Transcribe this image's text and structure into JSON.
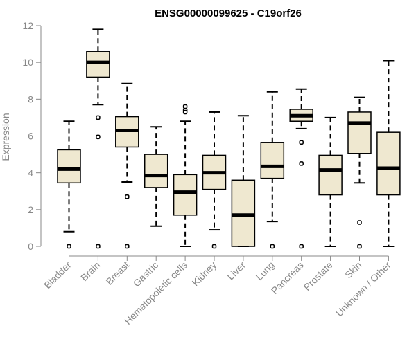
{
  "chart_data": {
    "type": "boxplot",
    "title": "ENSG00000099625 - C19orf26",
    "xlabel": "",
    "ylabel": "Expression",
    "ylim": [
      0,
      12
    ],
    "yticks": [
      0,
      2,
      4,
      6,
      8,
      10,
      12
    ],
    "colors": {
      "box_fill": "#efe8d0",
      "stroke": "#000000",
      "axis": "#888888"
    },
    "categories": [
      "Bladder",
      "Brain",
      "Breast",
      "Gastric",
      "Hematopoietic cells",
      "Kidney",
      "Liver",
      "Lung",
      "Pancreas",
      "Prostate",
      "Skin",
      "Unknown / Other"
    ],
    "boxes": [
      {
        "name": "Bladder",
        "whisker_low": 0.8,
        "q1": 3.45,
        "median": 4.2,
        "q3": 5.25,
        "whisker_high": 6.8,
        "outliers": [
          0
        ]
      },
      {
        "name": "Brain",
        "whisker_low": 7.7,
        "q1": 9.2,
        "median": 10.0,
        "q3": 10.6,
        "whisker_high": 11.8,
        "outliers": [
          7.0,
          5.95,
          0
        ]
      },
      {
        "name": "Breast",
        "whisker_low": 3.5,
        "q1": 5.4,
        "median": 6.3,
        "q3": 7.05,
        "whisker_high": 8.85,
        "outliers": [
          2.7,
          0
        ]
      },
      {
        "name": "Gastric",
        "whisker_low": 1.1,
        "q1": 3.2,
        "median": 3.85,
        "q3": 5.0,
        "whisker_high": 6.5,
        "outliers": []
      },
      {
        "name": "Hematopoietic cells",
        "whisker_low": 0,
        "q1": 1.7,
        "median": 2.95,
        "q3": 3.9,
        "whisker_high": 6.8,
        "outliers": [
          7.6,
          7.4,
          7.3
        ]
      },
      {
        "name": "Kidney",
        "whisker_low": 0.9,
        "q1": 3.1,
        "median": 4.0,
        "q3": 4.95,
        "whisker_high": 7.3,
        "outliers": [
          0
        ]
      },
      {
        "name": "Liver",
        "whisker_low": 0,
        "q1": 0,
        "median": 1.7,
        "q3": 3.6,
        "whisker_high": 7.1,
        "outliers": []
      },
      {
        "name": "Lung",
        "whisker_low": 1.35,
        "q1": 3.7,
        "median": 4.35,
        "q3": 5.65,
        "whisker_high": 8.4,
        "outliers": [
          0
        ]
      },
      {
        "name": "Pancreas",
        "whisker_low": 6.4,
        "q1": 6.8,
        "median": 7.1,
        "q3": 7.45,
        "whisker_high": 8.55,
        "outliers": [
          5.65,
          4.5,
          0
        ]
      },
      {
        "name": "Prostate",
        "whisker_low": 0,
        "q1": 2.8,
        "median": 4.15,
        "q3": 4.95,
        "whisker_high": 7.0,
        "outliers": []
      },
      {
        "name": "Skin",
        "whisker_low": 3.45,
        "q1": 5.05,
        "median": 6.7,
        "q3": 7.3,
        "whisker_high": 8.1,
        "outliers": [
          1.3,
          0
        ]
      },
      {
        "name": "Unknown / Other",
        "whisker_low": 0,
        "q1": 2.8,
        "median": 4.25,
        "q3": 6.2,
        "whisker_high": 10.1,
        "outliers": []
      }
    ]
  }
}
